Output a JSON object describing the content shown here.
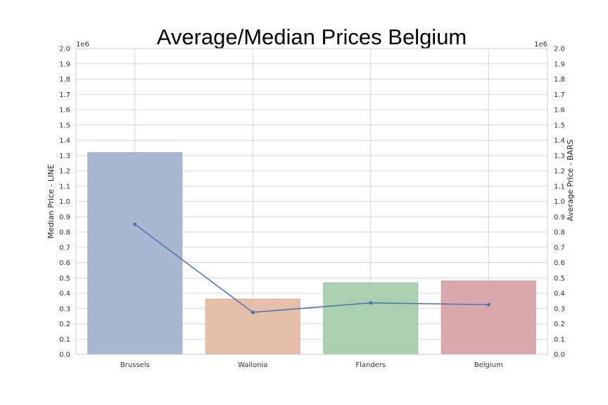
{
  "chart_data": {
    "type": "bar",
    "title": "Average/Median Prices Belgium",
    "categories": [
      "Brussels",
      "Wallonia",
      "Flanders",
      "Belgium"
    ],
    "bars": {
      "name": "Average Price",
      "values": [
        1320000,
        362000,
        468000,
        480000
      ],
      "colors": [
        "#a9b7d1",
        "#e5bfaa",
        "#abcfb1",
        "#d9a9ad"
      ],
      "edge_colors": [
        "#98a9c9",
        "#dcae95",
        "#97c39e",
        "#cf9399"
      ]
    },
    "line": {
      "name": "Median Price",
      "values": [
        850000,
        275000,
        337000,
        325000
      ],
      "color": "#4c72b0"
    },
    "ylabel_left": "Median Price - LINE",
    "ylabel_right": "Average Price - BARS",
    "ylim": [
      0,
      2000000
    ],
    "yticks": [
      "0.0",
      "0.1",
      "0.2",
      "0.3",
      "0.4",
      "0.5",
      "0.6",
      "0.7",
      "0.8",
      "0.9",
      "1.0",
      "1.1",
      "1.2",
      "1.3",
      "1.4",
      "1.5",
      "1.6",
      "1.7",
      "1.8",
      "1.9",
      "2.0"
    ],
    "axis_offset_label": "1e6",
    "grid": true
  }
}
